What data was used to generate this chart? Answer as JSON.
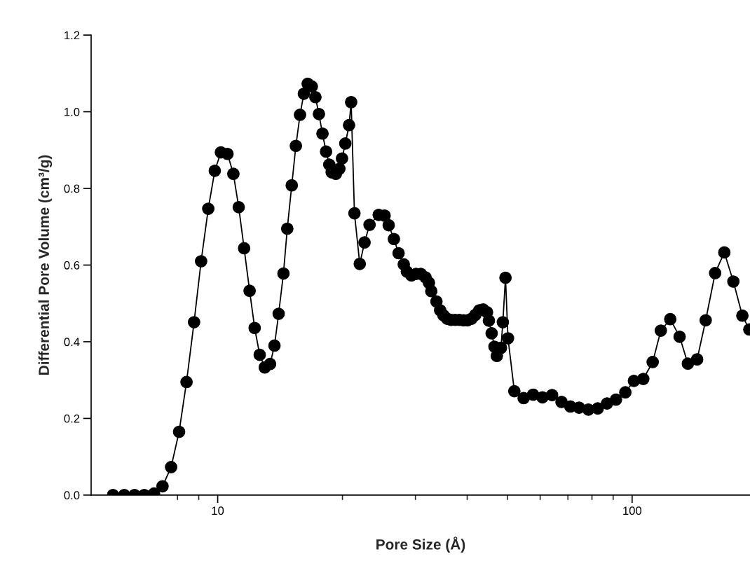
{
  "chart_data": {
    "type": "line",
    "xlabel": "Pore Size (Å)",
    "ylabel": "Differential Pore Volume (cm³/g)",
    "log": "x",
    "xlim": [
      4.95,
      192.5
    ],
    "ylim": [
      0,
      1.2
    ],
    "xticks": [
      {
        "value": 8,
        "label": null
      },
      {
        "value": 9,
        "label": null
      },
      10,
      {
        "value": 20,
        "label": null
      },
      {
        "value": 30,
        "label": null
      },
      {
        "value": 40,
        "label": null
      },
      {
        "value": 50,
        "label": null
      },
      {
        "value": 60,
        "label": null
      },
      {
        "value": 70,
        "label": null
      },
      {
        "value": 80,
        "label": null
      },
      {
        "value": 90,
        "label": null
      },
      100
    ],
    "yticks": [
      {
        "value": 0,
        "label": "0.0"
      },
      {
        "value": 0.2,
        "label": "0.2"
      },
      {
        "value": 0.4,
        "label": "0.4"
      },
      {
        "value": 0.6,
        "label": "0.6"
      },
      {
        "value": 0.8,
        "label": "0.8"
      },
      {
        "value": 1.0,
        "label": "1.0"
      },
      {
        "value": 1.2,
        "label": "1.2"
      }
    ],
    "grid": false,
    "marker": "circle",
    "line_style": "solid",
    "series": [
      {
        "color": "#000000",
        "x": [
          5.59,
          5.95,
          6.3,
          6.65,
          7.02,
          7.36,
          7.72,
          8.07,
          8.41,
          8.77,
          9.12,
          9.49,
          9.84,
          10.18,
          10.56,
          10.91,
          11.24,
          11.58,
          11.94,
          12.28,
          12.63,
          12.99,
          13.38,
          13.71,
          14.03,
          14.41,
          14.72,
          15.09,
          15.44,
          15.8,
          16.14,
          16.49,
          16.87,
          17.21,
          17.55,
          17.9,
          18.26,
          18.59,
          18.84,
          19.28,
          19.66,
          19.95,
          20.32,
          20.75,
          20.99,
          21.38,
          22.02,
          22.61,
          23.25,
          24.46,
          25.28,
          25.86,
          26.62,
          27.32,
          28.12,
          28.6,
          29.34,
          30.1,
          30.92,
          31.72,
          32.34,
          32.76,
          33.72,
          34.42,
          35.06,
          35.78,
          36.58,
          37.42,
          38.3,
          39.2,
          40.08,
          40.98,
          41.84,
          42.78,
          43.72,
          44.66,
          45.12,
          45.82,
          46.54,
          47.16,
          48.26,
          48.76,
          49.48,
          50.18,
          51.98,
          54.74,
          57.68,
          60.76,
          64.1,
          67.55,
          70.97,
          74.46,
          78.43,
          82.6,
          87.0,
          91.43,
          96.3,
          101.0,
          106.4,
          112.1,
          117.3,
          123.6,
          130.2,
          136.3,
          143.5,
          150.5,
          158.6,
          166.9,
          175.5,
          184.5,
          191.8
        ],
        "values": [
          0,
          0,
          0,
          0,
          0.004,
          0.023,
          0.073,
          0.165,
          0.295,
          0.451,
          0.61,
          0.747,
          0.846,
          0.894,
          0.89,
          0.838,
          0.751,
          0.644,
          0.533,
          0.436,
          0.366,
          0.333,
          0.342,
          0.39,
          0.473,
          0.578,
          0.695,
          0.808,
          0.911,
          0.992,
          1.047,
          1.073,
          1.066,
          1.038,
          0.994,
          0.943,
          0.896,
          0.862,
          0.842,
          0.838,
          0.851,
          0.878,
          0.917,
          0.965,
          1.025,
          0.735,
          0.603,
          0.659,
          0.705,
          0.731,
          0.729,
          0.704,
          0.668,
          0.631,
          0.602,
          0.583,
          0.573,
          0.577,
          0.577,
          0.568,
          0.554,
          0.532,
          0.505,
          0.482,
          0.469,
          0.46,
          0.457,
          0.457,
          0.457,
          0.456,
          0.456,
          0.46,
          0.47,
          0.482,
          0.484,
          0.477,
          0.455,
          0.422,
          0.387,
          0.363,
          0.384,
          0.451,
          0.567,
          0.409,
          0.271,
          0.253,
          0.262,
          0.255,
          0.261,
          0.243,
          0.231,
          0.228,
          0.223,
          0.226,
          0.239,
          0.249,
          0.268,
          0.298,
          0.303,
          0.347,
          0.429,
          0.459,
          0.413,
          0.343,
          0.354,
          0.456,
          0.579,
          0.633,
          0.557,
          0.468,
          0.432
        ]
      }
    ]
  }
}
